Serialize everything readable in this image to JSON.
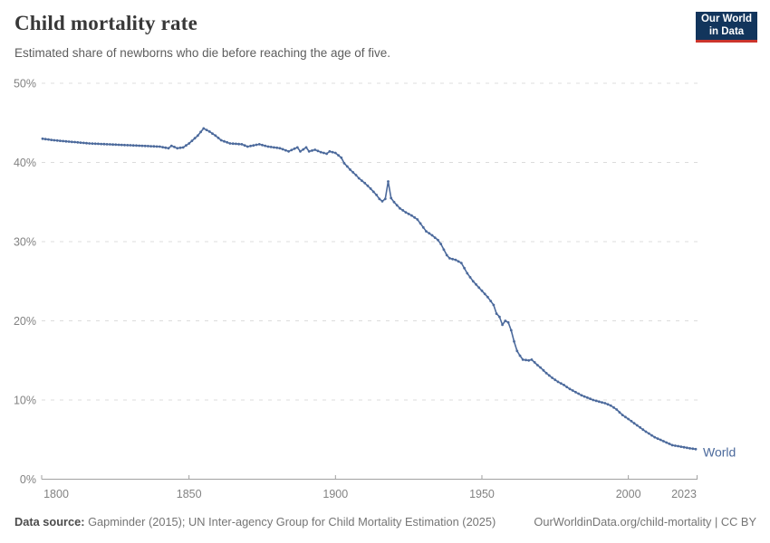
{
  "header": {
    "title": "Child mortality rate",
    "subtitle": "Estimated share of newborns who die before reaching the age of five.",
    "logo": {
      "line1": "Our World",
      "line2": "in Data",
      "bg_color": "#12355c",
      "accent_color": "#cc352c"
    }
  },
  "chart_data": {
    "type": "line",
    "title": "Child mortality rate",
    "xlabel": "",
    "ylabel": "",
    "x_range": [
      1800,
      2023
    ],
    "ylim": [
      0,
      50
    ],
    "grid": "dashed-horizontal",
    "legend_position": "end-of-line",
    "y_ticks": [
      {
        "value": 0,
        "label": "0%"
      },
      {
        "value": 10,
        "label": "10%"
      },
      {
        "value": 20,
        "label": "20%"
      },
      {
        "value": 30,
        "label": "30%"
      },
      {
        "value": 40,
        "label": "40%"
      },
      {
        "value": 50,
        "label": "50%"
      }
    ],
    "x_ticks": [
      {
        "year": 1800,
        "label": "1800"
      },
      {
        "year": 1850,
        "label": "1850"
      },
      {
        "year": 1900,
        "label": "1900"
      },
      {
        "year": 1950,
        "label": "1950"
      },
      {
        "year": 2000,
        "label": "2000"
      },
      {
        "year": 2023,
        "label": "2023"
      }
    ],
    "colors": {
      "grid": "#dcdcdc",
      "axis": "#a1a1a1",
      "tick_text": "#828282"
    },
    "series": [
      {
        "name": "World",
        "color": "#4c6a9c",
        "points": [
          [
            1800,
            43.0
          ],
          [
            1804,
            42.8
          ],
          [
            1810,
            42.6
          ],
          [
            1816,
            42.4
          ],
          [
            1822,
            42.3
          ],
          [
            1828,
            42.2
          ],
          [
            1834,
            42.1
          ],
          [
            1840,
            42.0
          ],
          [
            1843,
            41.8
          ],
          [
            1844,
            42.1
          ],
          [
            1846,
            41.8
          ],
          [
            1848,
            41.9
          ],
          [
            1850,
            42.4
          ],
          [
            1853,
            43.4
          ],
          [
            1855,
            44.3
          ],
          [
            1857,
            43.9
          ],
          [
            1859,
            43.4
          ],
          [
            1861,
            42.8
          ],
          [
            1864,
            42.4
          ],
          [
            1868,
            42.3
          ],
          [
            1870,
            42.0
          ],
          [
            1874,
            42.3
          ],
          [
            1877,
            42.0
          ],
          [
            1881,
            41.8
          ],
          [
            1884,
            41.4
          ],
          [
            1887,
            41.9
          ],
          [
            1888,
            41.4
          ],
          [
            1890,
            41.9
          ],
          [
            1891,
            41.4
          ],
          [
            1893,
            41.6
          ],
          [
            1895,
            41.3
          ],
          [
            1897,
            41.1
          ],
          [
            1898,
            41.4
          ],
          [
            1900,
            41.2
          ],
          [
            1902,
            40.6
          ],
          [
            1903,
            39.9
          ],
          [
            1905,
            39.1
          ],
          [
            1907,
            38.4
          ],
          [
            1908,
            38.0
          ],
          [
            1910,
            37.4
          ],
          [
            1912,
            36.7
          ],
          [
            1914,
            35.9
          ],
          [
            1915,
            35.4
          ],
          [
            1916,
            35.1
          ],
          [
            1917,
            35.4
          ],
          [
            1918,
            37.6
          ],
          [
            1919,
            35.5
          ],
          [
            1920,
            35.0
          ],
          [
            1922,
            34.2
          ],
          [
            1924,
            33.7
          ],
          [
            1926,
            33.3
          ],
          [
            1928,
            32.8
          ],
          [
            1930,
            31.8
          ],
          [
            1931,
            31.3
          ],
          [
            1933,
            30.8
          ],
          [
            1935,
            30.2
          ],
          [
            1936,
            29.7
          ],
          [
            1938,
            28.3
          ],
          [
            1939,
            27.9
          ],
          [
            1941,
            27.7
          ],
          [
            1943,
            27.3
          ],
          [
            1945,
            26.0
          ],
          [
            1947,
            25.0
          ],
          [
            1949,
            24.2
          ],
          [
            1950,
            23.8
          ],
          [
            1952,
            23.0
          ],
          [
            1954,
            22.0
          ],
          [
            1955,
            20.9
          ],
          [
            1956,
            20.5
          ],
          [
            1957,
            19.5
          ],
          [
            1958,
            20.0
          ],
          [
            1959,
            19.8
          ],
          [
            1960,
            18.8
          ],
          [
            1961,
            17.4
          ],
          [
            1962,
            16.2
          ],
          [
            1963,
            15.6
          ],
          [
            1964,
            15.1
          ],
          [
            1966,
            15.0
          ],
          [
            1967,
            15.1
          ],
          [
            1969,
            14.4
          ],
          [
            1970,
            14.1
          ],
          [
            1972,
            13.4
          ],
          [
            1974,
            12.8
          ],
          [
            1976,
            12.3
          ],
          [
            1978,
            11.9
          ],
          [
            1980,
            11.4
          ],
          [
            1982,
            11.0
          ],
          [
            1984,
            10.6
          ],
          [
            1986,
            10.3
          ],
          [
            1988,
            10.0
          ],
          [
            1990,
            9.8
          ],
          [
            1992,
            9.6
          ],
          [
            1994,
            9.3
          ],
          [
            1996,
            8.8
          ],
          [
            1998,
            8.1
          ],
          [
            2000,
            7.6
          ],
          [
            2003,
            6.8
          ],
          [
            2006,
            6.0
          ],
          [
            2009,
            5.3
          ],
          [
            2012,
            4.8
          ],
          [
            2015,
            4.3
          ],
          [
            2018,
            4.1
          ],
          [
            2021,
            3.9
          ],
          [
            2023,
            3.8
          ]
        ]
      }
    ]
  },
  "footer": {
    "source_label": "Data source:",
    "source_text": " Gapminder (2015); UN Inter-agency Group for Child Mortality Estimation (2025)",
    "link_text": "OurWorldinData.org/child-mortality",
    "separator": " | ",
    "license_text": "CC BY"
  }
}
